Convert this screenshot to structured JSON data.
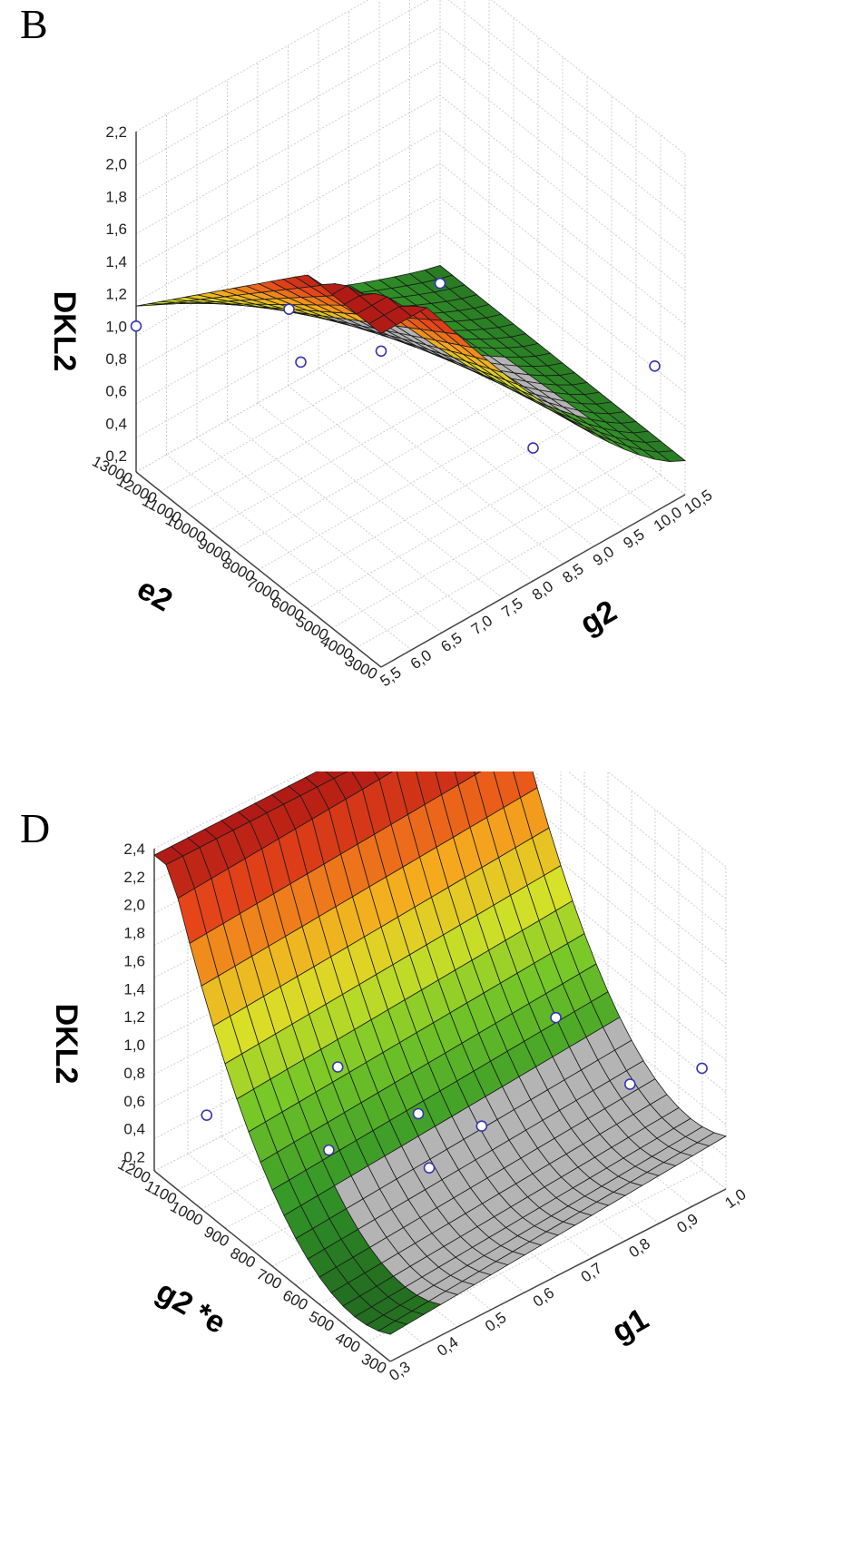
{
  "chart_data": [
    {
      "panel": "B",
      "type": "surface3d",
      "zlabel": "DKL2",
      "xlabel": "g2",
      "ylabel": "e2",
      "x_ticks": [
        "5,5",
        "6,0",
        "6,5",
        "7,0",
        "7,5",
        "8,0",
        "8,5",
        "9,0",
        "9,5",
        "10,0",
        "10,5"
      ],
      "y_ticks": [
        "3000",
        "4000",
        "5000",
        "6000",
        "7000",
        "8000",
        "9000",
        "10000",
        "11000",
        "12000",
        "13000"
      ],
      "z_ticks": [
        "0,2",
        "0,4",
        "0,6",
        "0,8",
        "1,0",
        "1,2",
        "1,4",
        "1,6",
        "1,8",
        "2,0",
        "2,2"
      ],
      "xlim": [
        5.5,
        10.5
      ],
      "ylim": [
        3000,
        13000
      ],
      "zlim": [
        0.1,
        2.2
      ],
      "points": [
        {
          "x": 5.5,
          "y": 13000,
          "z": 1.0
        },
        {
          "x": 6.0,
          "y": 8000,
          "z": 1.6
        },
        {
          "x": 5.5,
          "y": 3000,
          "z": 2.05
        },
        {
          "x": 7.0,
          "y": 10000,
          "z": 0.82
        },
        {
          "x": 8.0,
          "y": 3000,
          "z": 0.92
        },
        {
          "x": 10.0,
          "y": 3000,
          "z": 1.0
        },
        {
          "x": 10.5,
          "y": 13000,
          "z": 0.2
        }
      ]
    },
    {
      "panel": "D",
      "type": "surface3d",
      "zlabel": "DKL2",
      "xlabel": "g1",
      "ylabel": "g2 *e",
      "x_ticks": [
        "0,3",
        "0,4",
        "0,5",
        "0,6",
        "0,7",
        "0,8",
        "0,9",
        "1,0"
      ],
      "y_ticks": [
        "300",
        "400",
        "500",
        "600",
        "700",
        "800",
        "900",
        "1000",
        "1100",
        "1200"
      ],
      "z_ticks": [
        "0,2",
        "0,4",
        "0,6",
        "0,8",
        "1,0",
        "1,2",
        "1,4",
        "1,6",
        "1,8",
        "2,0",
        "2,2",
        "2,4"
      ],
      "xlim": [
        0.3,
        1.0
      ],
      "ylim": [
        300,
        1200
      ],
      "zlim": [
        0.1,
        2.4
      ],
      "points": [
        {
          "x": 0.3,
          "y": 1000,
          "z": 0.8
        },
        {
          "x": 0.3,
          "y": 500,
          "z": 1.9
        },
        {
          "x": 0.5,
          "y": 900,
          "z": 0.35
        },
        {
          "x": 0.6,
          "y": 700,
          "z": 0.35
        },
        {
          "x": 0.55,
          "y": 650,
          "z": 0.9
        },
        {
          "x": 0.6,
          "y": 500,
          "z": 0.95
        },
        {
          "x": 0.7,
          "y": 400,
          "z": 1.7
        },
        {
          "x": 0.8,
          "y": 300,
          "z": 1.2
        },
        {
          "x": 0.95,
          "y": 300,
          "z": 1.05
        }
      ]
    }
  ],
  "panels": {
    "b": {
      "letter": "B"
    },
    "d": {
      "letter": "D"
    }
  }
}
